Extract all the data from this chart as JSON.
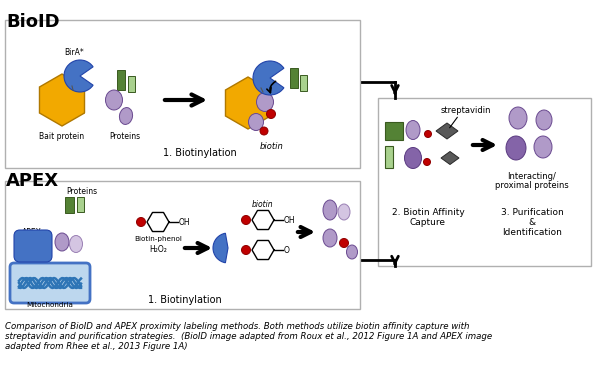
{
  "caption_line1": "Comparison of BioID and APEX proximity labeling methods. Both methods utilize biotin affinity capture with",
  "caption_line2": "streptavidin and purification strategies.  (BioID image adapted from Roux et al., 2012 Figure 1A and APEX image",
  "caption_line3": "adapted from Rhee et al., 2013 Figure 1A)",
  "bioid_label": "BioID",
  "apex_label": "APEX",
  "c_yellow": "#f2a900",
  "c_blue_dark": "#4472c4",
  "c_blue_mid": "#9dc3e6",
  "c_blue_apex": "#4a7cc7",
  "c_purple_light": "#b09ac8",
  "c_purple_dark": "#8464a8",
  "c_green_dark": "#548235",
  "c_green_light": "#a9d18e",
  "c_red": "#c00000",
  "c_gray_dark": "#595959",
  "c_black": "#000000",
  "c_white": "#ffffff",
  "c_border": "#b0b0b0",
  "c_mito_fill": "#bdd7ee",
  "c_mito_border": "#4472c4",
  "c_mito_wave": "#2e75b6"
}
